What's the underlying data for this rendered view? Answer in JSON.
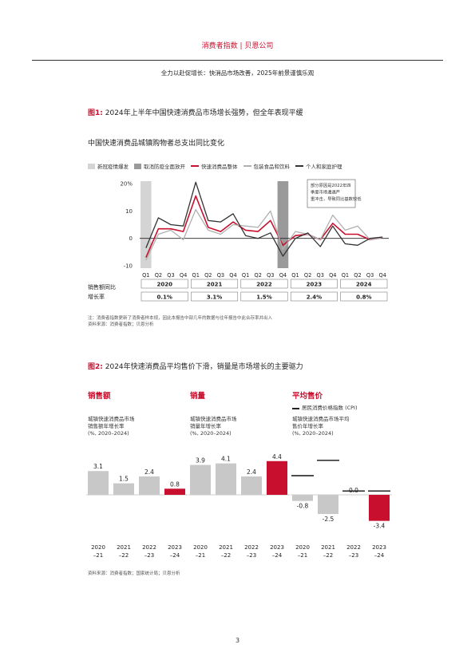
{
  "header": {
    "title": "消费者指数 | 贝恩公司"
  },
  "page_subtitle": "全力以赴促增长：快消品市场改善，2025年前景谨慎乐观",
  "figure1": {
    "tag": "图1:",
    "title": " 2024年上半年中国快速消费品市场增长强势，但全年表现平缓",
    "chart_title": "中国快速消费品城镇购物者总支出同比变化",
    "legend": [
      {
        "label": "新冠疫情爆发",
        "type": "box",
        "color": "#d4d4d4"
      },
      {
        "label": "取消防疫全面放开",
        "type": "box",
        "color": "#9a9a9a"
      },
      {
        "label": "快速消费品整体",
        "type": "line",
        "color": "#c8102e"
      },
      {
        "label": "包装食品和饮料",
        "type": "line",
        "color": "#b0b0b0"
      },
      {
        "label": "个人和家庭护理",
        "type": "line",
        "color": "#333333"
      }
    ],
    "callout": "部分原因是2022年四季度市场遭遇严重冲击，导致同比基数较低",
    "row_label": "销售额同比增长率",
    "notes": [
      "注：消费者指数更新了消费者样本规，因此本报告中部几年的数据与往年报告中此合存率并出入",
      "资料来源：消费者指数；贝恩分析"
    ]
  },
  "figure2": {
    "tag": "图2:",
    "title": " 2024年快速消费品平均售价下滑，销量是市场增长的主要驱力",
    "panels": [
      {
        "title": "销售额",
        "sub": [
          "城镇快速消费品市场",
          "销售额年增长率",
          "(%, 2020–2024)"
        ]
      },
      {
        "title": "销量",
        "sub": [
          "城镇快速消费品市场",
          "销量年增长率",
          "(%, 2020–2024)"
        ]
      },
      {
        "title": "平均售价",
        "sub": [
          "城镇快速消费品市场平均",
          "售价年增长率",
          "(%, 2020–2024)"
        ],
        "legend": "居民消费价格指数 (CPI)"
      }
    ],
    "period_labels": [
      [
        "2020",
        "–21"
      ],
      [
        "2021",
        "–22"
      ],
      [
        "2022",
        "–23"
      ],
      [
        "2023",
        "–24"
      ]
    ],
    "source": "资料来源：消费者指数；国家统计局；贝恩分析"
  },
  "page_number": "3",
  "colors": {
    "accent": "#c8102e",
    "gray_bar": "#c8c8c8",
    "dark": "#333333",
    "light_gray": "#b0b0b0",
    "mid_gray": "#9a9a9a"
  },
  "chart_data": [
    {
      "type": "line",
      "title": "中国快速消费品城镇购物者总支出同比变化",
      "x": [
        "Q1",
        "Q2",
        "Q3",
        "Q4",
        "Q1",
        "Q2",
        "Q3",
        "Q4",
        "Q1",
        "Q2",
        "Q3",
        "Q4",
        "Q1",
        "Q2",
        "Q3",
        "Q4",
        "Q1",
        "Q2",
        "Q3",
        "Q4"
      ],
      "year_groups": [
        {
          "year": "2020",
          "growth": "0.1%"
        },
        {
          "year": "2021",
          "growth": "3.1%"
        },
        {
          "year": "2022",
          "growth": "1.5%"
        },
        {
          "year": "2023",
          "growth": "2.4%"
        },
        {
          "year": "2024",
          "growth": "0.8%"
        }
      ],
      "y_ticks": [
        "20%",
        "10",
        "0",
        "-10"
      ],
      "ylim": [
        -10,
        20
      ],
      "shaded": [
        {
          "index": 0,
          "label": "新冠疫情爆发"
        },
        {
          "index": 11,
          "label": "取消防疫全面放开"
        }
      ],
      "series": [
        {
          "name": "快速消费品整体",
          "color": "#c8102e",
          "values": [
            -7,
            3.5,
            3.5,
            2.5,
            15.5,
            4,
            2.5,
            6,
            3,
            2.5,
            6.5,
            -2.5,
            1,
            1.5,
            -0.5,
            5.5,
            1.5,
            1.5,
            -0.5,
            0.3
          ]
        },
        {
          "name": "包装食品和饮料",
          "color": "#b0b0b0",
          "values": [
            -8,
            1.5,
            3,
            -0.5,
            10.5,
            3,
            1.5,
            5,
            4.5,
            4,
            10,
            -4,
            2.5,
            1.5,
            -0.5,
            8.5,
            3,
            4.5,
            -0.5,
            0.3
          ]
        },
        {
          "name": "个人和家庭护理",
          "color": "#333333",
          "values": [
            -3.5,
            7.5,
            5,
            4.5,
            20.5,
            6.5,
            6,
            9,
            1,
            0,
            2,
            -6.5,
            0,
            2,
            -3,
            4.5,
            -2,
            -2.5,
            0,
            0.5
          ]
        }
      ]
    },
    {
      "type": "bar",
      "title": "销售额",
      "categories": [
        "2020–21",
        "2021–22",
        "2022–23",
        "2023–24"
      ],
      "values": [
        3.1,
        1.5,
        2.4,
        0.8
      ],
      "value_labels": [
        "3.1",
        "1.5",
        "2.4",
        "0.8"
      ]
    },
    {
      "type": "bar",
      "title": "销量",
      "categories": [
        "2020–21",
        "2021–22",
        "2022–23",
        "2023–24"
      ],
      "values": [
        3.9,
        4.1,
        2.4,
        4.4
      ],
      "value_labels": [
        "3.9",
        "4.1",
        "2.4",
        "4.4"
      ]
    },
    {
      "type": "bar",
      "title": "平均售价",
      "categories": [
        "2020–21",
        "2021–22",
        "2022–23",
        "2023–24"
      ],
      "values": [
        -0.8,
        -2.5,
        0.0,
        -3.4
      ],
      "value_labels": [
        "-0.8",
        "-2.5",
        "0.0",
        "-3.4"
      ],
      "cpi": [
        2.5,
        4.5,
        0.5,
        0.5
      ]
    }
  ]
}
